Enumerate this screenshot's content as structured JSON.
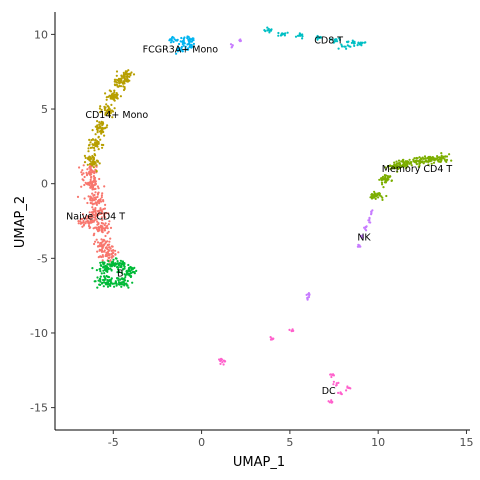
{
  "chart_data": {
    "type": "scatter",
    "title": "",
    "xlabel": "UMAP_1",
    "ylabel": "UMAP_2",
    "xlim": [
      -8.3,
      15.2
    ],
    "ylim": [
      -16.5,
      11.5
    ],
    "x_ticks": [
      -5,
      0,
      5,
      10,
      15
    ],
    "y_ticks": [
      -15,
      -10,
      -5,
      0,
      5,
      10
    ],
    "grid": false,
    "legend": "none",
    "clusters": [
      {
        "name": "Naive CD4 T",
        "color": "#F8766D",
        "label_at": [
          -6.0,
          -2.2
        ],
        "points": [
          [
            -6.2,
            0.0
          ],
          [
            -6.0,
            -1.0
          ],
          [
            -5.8,
            -2.0
          ],
          [
            -5.7,
            -3.0
          ],
          [
            -5.5,
            -4.0
          ],
          [
            -5.3,
            -4.8
          ],
          [
            -6.5,
            -2.5
          ],
          [
            -6.3,
            0.8
          ]
        ],
        "spread": [
          0.45,
          0.45
        ],
        "n": 380
      },
      {
        "name": "Memory CD4 T",
        "color": "#7CAE00",
        "label_at": [
          12.2,
          1.0
        ],
        "points": [
          [
            9.9,
            -0.8
          ],
          [
            10.4,
            0.3
          ],
          [
            10.9,
            1.2
          ],
          [
            11.5,
            1.3
          ],
          [
            12.3,
            1.5
          ],
          [
            13.0,
            1.6
          ],
          [
            13.6,
            1.7
          ]
        ],
        "spread": [
          0.35,
          0.25
        ],
        "n": 260
      },
      {
        "name": "CD14+ Mono",
        "color": "#B79F00",
        "label_at": [
          -4.8,
          4.6
        ],
        "points": [
          [
            -6.2,
            1.5
          ],
          [
            -6.0,
            2.6
          ],
          [
            -5.7,
            3.8
          ],
          [
            -5.3,
            4.9
          ],
          [
            -5.0,
            5.8
          ],
          [
            -4.6,
            6.7
          ],
          [
            -4.3,
            7.3
          ]
        ],
        "spread": [
          0.35,
          0.4
        ],
        "n": 300
      },
      {
        "name": "B",
        "color": "#00BA38",
        "label_at": [
          -4.6,
          -6.0
        ],
        "points": [
          [
            -5.5,
            -5.6
          ],
          [
            -4.7,
            -5.4
          ],
          [
            -4.1,
            -5.9
          ],
          [
            -5.4,
            -6.5
          ],
          [
            -4.5,
            -6.6
          ]
        ],
        "spread": [
          0.45,
          0.35
        ],
        "n": 240
      },
      {
        "name": "CD8 T",
        "color": "#00BFC4",
        "label_at": [
          7.2,
          9.6
        ],
        "points": [
          [
            3.8,
            10.3
          ],
          [
            4.6,
            10.0
          ],
          [
            5.6,
            9.9
          ],
          [
            6.6,
            9.8
          ],
          [
            7.6,
            9.6
          ],
          [
            8.5,
            9.5
          ],
          [
            9.0,
            9.4
          ],
          [
            8.2,
            9.2
          ]
        ],
        "spread": [
          0.25,
          0.13
        ],
        "n": 95
      },
      {
        "name": "FCGR3A+ Mono",
        "color": "#00B4F0",
        "label_at": [
          -1.2,
          9.0
        ],
        "points": [
          [
            -1.6,
            9.6
          ],
          [
            -1.0,
            9.5
          ],
          [
            -0.6,
            9.7
          ],
          [
            -1.2,
            9.0
          ],
          [
            -0.7,
            9.2
          ]
        ],
        "spread": [
          0.25,
          0.22
        ],
        "n": 85
      },
      {
        "name": "NK",
        "color": "#C77CFF",
        "label_at": [
          9.2,
          -3.6
        ],
        "points": [
          [
            9.6,
            -1.9
          ],
          [
            9.5,
            -2.5
          ],
          [
            9.3,
            -3.0
          ],
          [
            9.1,
            -3.6
          ],
          [
            8.9,
            -4.2
          ],
          [
            2.2,
            9.6
          ],
          [
            1.7,
            9.3
          ],
          [
            6.1,
            -7.4
          ],
          [
            6.0,
            -7.6
          ]
        ],
        "spread": [
          0.08,
          0.15
        ],
        "n": 48
      },
      {
        "name": "DC",
        "color": "#FF61CC",
        "label_at": [
          7.2,
          -13.9
        ],
        "points": [
          [
            7.4,
            -12.8
          ],
          [
            7.6,
            -13.4
          ],
          [
            7.9,
            -14.0
          ],
          [
            7.3,
            -14.6
          ],
          [
            8.3,
            -13.7
          ],
          [
            5.1,
            -9.8
          ],
          [
            4.0,
            -10.4
          ],
          [
            1.1,
            -11.8
          ],
          [
            1.2,
            -12.0
          ]
        ],
        "spread": [
          0.15,
          0.15
        ],
        "n": 55
      }
    ]
  }
}
